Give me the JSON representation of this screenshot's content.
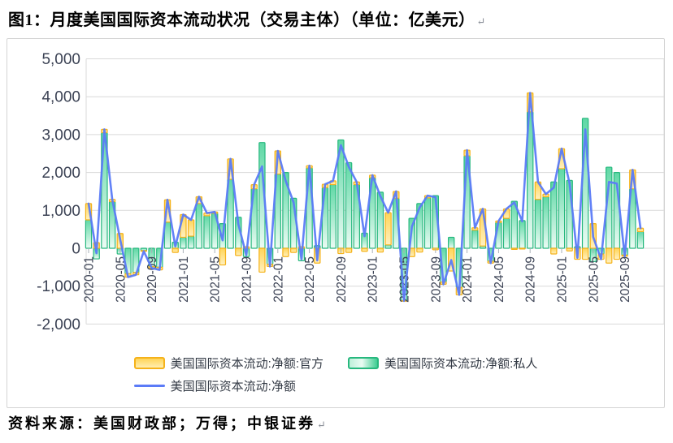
{
  "figure": {
    "title": "图1：月度美国国际资本流动状况（交易主体）（单位：亿美元）",
    "paragraph_mark": "↵",
    "source_note": "资料来源：美国财政部；万得；中银证券"
  },
  "legend": {
    "official": "美国国际资本流动:净额:官方",
    "private": "美国国际资本流动:净额:私人",
    "net": "美国国际资本流动:净额"
  },
  "colors": {
    "official_border": "#f5b21a",
    "official_fill": "#ffd558",
    "official_fill_light": "#fff0bf",
    "private_border": "#27b87e",
    "private_fill": "#5fd8a5",
    "private_fill_light": "#ecfbf4",
    "net_line": "#5b7bf7",
    "gridline": "#d9d9d9",
    "axis_text": "#3b4254",
    "tick": "#aab0b8",
    "frame_border": "#d4d4d4"
  },
  "chart_data": {
    "type": "bar",
    "title": "月度美国国际资本流动状况（交易主体）",
    "unit": "亿美元",
    "grid": true,
    "legend_position": "bottom",
    "ylim": [
      -2000,
      5000
    ],
    "ytick_step": 1000,
    "ytick_labels": [
      "5,000",
      "4,000",
      "3,000",
      "2,000",
      "1,000",
      "0",
      "-1,000",
      "-2,000"
    ],
    "xtick_every": 4,
    "xtick_labels": [
      "2020-01",
      "2020-05",
      "2020-09",
      "2021-01",
      "2021-05",
      "2021-09",
      "2022-01",
      "2022-05",
      "2022-09",
      "2023-01",
      "2023-05",
      "2023-09",
      "2024-01",
      "2024-05",
      "2024-09",
      "2025-01",
      "2025-05",
      "2025-09"
    ],
    "categories": [
      "2020-01",
      "2020-02",
      "2020-03",
      "2020-04",
      "2020-05",
      "2020-06",
      "2020-07",
      "2020-08",
      "2020-09",
      "2020-10",
      "2020-11",
      "2020-12",
      "2021-01",
      "2021-02",
      "2021-03",
      "2021-04",
      "2021-05",
      "2021-06",
      "2021-07",
      "2021-08",
      "2021-09",
      "2021-10",
      "2021-11",
      "2021-12",
      "2022-01",
      "2022-02",
      "2022-03",
      "2022-04",
      "2022-05",
      "2022-06",
      "2022-07",
      "2022-08",
      "2022-09",
      "2022-10",
      "2022-11",
      "2022-12",
      "2023-01",
      "2023-02",
      "2023-03",
      "2023-04",
      "2023-05",
      "2023-06",
      "2023-07",
      "2023-08",
      "2023-09",
      "2023-10",
      "2023-11",
      "2023-12",
      "2024-01",
      "2024-02",
      "2024-03",
      "2024-04",
      "2024-05",
      "2024-06",
      "2024-07",
      "2024-08",
      "2024-09",
      "2024-10",
      "2024-11",
      "2024-12",
      "2025-01",
      "2025-02",
      "2025-03",
      "2025-04",
      "2025-05",
      "2025-06",
      "2025-07",
      "2025-08",
      "2025-09",
      "2025-10",
      "2025-11"
    ],
    "series": [
      {
        "name": "美国国际资本流动:净额:官方",
        "type": "bar",
        "stack": true,
        "values": [
          430,
          150,
          90,
          60,
          390,
          -90,
          -60,
          -20,
          -40,
          -70,
          590,
          -110,
          600,
          430,
          180,
          70,
          40,
          -440,
          540,
          -190,
          40,
          110,
          -630,
          -60,
          610,
          -220,
          -110,
          40,
          60,
          -390,
          90,
          100,
          -140,
          -110,
          70,
          -80,
          70,
          -100,
          850,
          180,
          -10,
          -220,
          -100,
          60,
          -40,
          -60,
          -600,
          -200,
          150,
          60,
          980,
          -50,
          40,
          250,
          -30,
          -20,
          500,
          460,
          70,
          -150,
          530,
          -70,
          -290,
          -290,
          650,
          -140,
          -390,
          -290,
          -30,
          500,
          90
        ]
      },
      {
        "name": "美国国际资本流动:净额:私人",
        "type": "bar",
        "stack": true,
        "values": [
          750,
          -280,
          3050,
          1230,
          -150,
          -670,
          -640,
          -60,
          -480,
          -500,
          690,
          160,
          290,
          320,
          1180,
          860,
          920,
          650,
          1820,
          820,
          -220,
          1570,
          2790,
          -420,
          1960,
          2000,
          1320,
          -330,
          2120,
          70,
          1600,
          1680,
          2860,
          2260,
          1680,
          400,
          1860,
          1480,
          90,
          1320,
          -1380,
          790,
          1180,
          1330,
          1390,
          -890,
          290,
          -1030,
          2440,
          480,
          60,
          -340,
          680,
          790,
          1240,
          730,
          3600,
          1290,
          1360,
          1750,
          2100,
          1790,
          40,
          3430,
          -350,
          -150,
          2140,
          2000,
          -180,
          1570,
          440
        ]
      },
      {
        "name": "美国国际资本流动:净额",
        "type": "line",
        "values": [
          1180,
          -130,
          3140,
          1290,
          240,
          -760,
          -700,
          -80,
          -520,
          -570,
          1280,
          50,
          890,
          750,
          1360,
          930,
          960,
          210,
          2360,
          630,
          -180,
          1680,
          2160,
          -480,
          2570,
          1780,
          1210,
          -290,
          2180,
          -320,
          1690,
          1780,
          2720,
          2150,
          1750,
          320,
          1930,
          1380,
          940,
          1500,
          -1390,
          570,
          1080,
          1390,
          1350,
          -950,
          -310,
          -1230,
          2590,
          540,
          1040,
          -390,
          720,
          1040,
          1210,
          710,
          4100,
          1750,
          1430,
          1600,
          2630,
          1720,
          -250,
          3140,
          300,
          -290,
          1750,
          1710,
          -210,
          2070,
          530
        ]
      }
    ]
  }
}
